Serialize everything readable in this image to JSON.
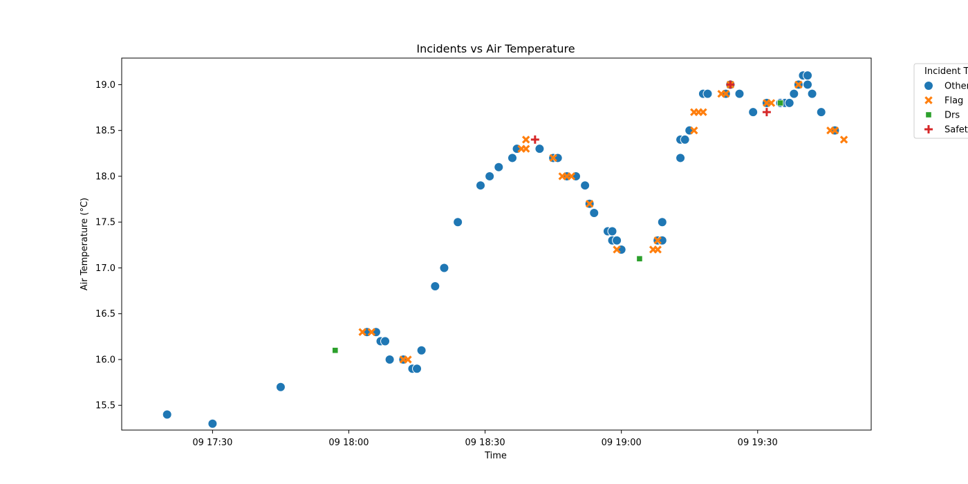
{
  "chart_data": {
    "type": "scatter",
    "title": "Incidents vs Air Temperature",
    "xlabel": "Time",
    "ylabel": "Air Temperature (°C)",
    "xlim": [
      "17:10",
      "19:55"
    ],
    "ylim": [
      15.23,
      19.29
    ],
    "x_ticks": [
      "09 17:30",
      "09 18:00",
      "09 18:30",
      "09 19:00",
      "09 19:30"
    ],
    "y_ticks": [
      "15.5",
      "16.0",
      "16.5",
      "17.0",
      "17.5",
      "18.0",
      "18.5",
      "19.0"
    ],
    "legend": {
      "title": "Incident Type",
      "placement": "outside-right",
      "entries": [
        "Other",
        "Flag",
        "Drs",
        "Safety Car"
      ]
    },
    "series": [
      {
        "name": "Other",
        "marker": "circle",
        "color": "#1f77b4",
        "points": [
          [
            "17:20",
            15.4
          ],
          [
            "17:30",
            15.3
          ],
          [
            "17:45",
            15.7
          ],
          [
            "18:04",
            16.3
          ],
          [
            "18:06",
            16.3
          ],
          [
            "18:07",
            16.2
          ],
          [
            "18:08",
            16.2
          ],
          [
            "18:09",
            16.0
          ],
          [
            "18:12",
            16.0
          ],
          [
            "18:14",
            15.9
          ],
          [
            "18:15",
            15.9
          ],
          [
            "18:16",
            16.1
          ],
          [
            "18:19",
            16.8
          ],
          [
            "18:21",
            17.0
          ],
          [
            "18:24",
            17.5
          ],
          [
            "18:29",
            17.9
          ],
          [
            "18:31",
            18.0
          ],
          [
            "18:33",
            18.1
          ],
          [
            "18:36",
            18.2
          ],
          [
            "18:37",
            18.3
          ],
          [
            "18:42",
            18.3
          ],
          [
            "18:45",
            18.2
          ],
          [
            "18:46",
            18.2
          ],
          [
            "18:48",
            18.0
          ],
          [
            "18:50",
            18.0
          ],
          [
            "18:52",
            17.9
          ],
          [
            "18:53",
            17.7
          ],
          [
            "18:54",
            17.6
          ],
          [
            "18:57",
            17.4
          ],
          [
            "18:58",
            17.4
          ],
          [
            "18:58",
            17.3
          ],
          [
            "18:59",
            17.3
          ],
          [
            "19:00",
            17.2
          ],
          [
            "19:08",
            17.3
          ],
          [
            "19:09",
            17.3
          ],
          [
            "19:09",
            17.5
          ],
          [
            "19:13",
            18.2
          ],
          [
            "19:13",
            18.4
          ],
          [
            "19:14",
            18.4
          ],
          [
            "19:15",
            18.5
          ],
          [
            "19:18",
            18.9
          ],
          [
            "19:19",
            18.9
          ],
          [
            "19:23",
            18.9
          ],
          [
            "19:24",
            19.0
          ],
          [
            "19:26",
            18.9
          ],
          [
            "19:29",
            18.7
          ],
          [
            "19:32",
            18.8
          ],
          [
            "19:35",
            18.8
          ],
          [
            "19:36",
            18.8
          ],
          [
            "19:37",
            18.8
          ],
          [
            "19:38",
            18.9
          ],
          [
            "19:39",
            19.0
          ],
          [
            "19:40",
            19.1
          ],
          [
            "19:41",
            19.1
          ],
          [
            "19:41",
            19.0
          ],
          [
            "19:42",
            18.9
          ],
          [
            "19:44",
            18.7
          ],
          [
            "19:44",
            18.7
          ],
          [
            "19:47",
            18.5
          ],
          [
            "19:47",
            18.5
          ]
        ]
      },
      {
        "name": "Flag",
        "marker": "x",
        "color": "#ff7f0e",
        "points": [
          [
            "18:03",
            16.3
          ],
          [
            "18:05",
            16.3
          ],
          [
            "18:12",
            16.0
          ],
          [
            "18:13",
            16.0
          ],
          [
            "18:38",
            18.3
          ],
          [
            "18:39",
            18.3
          ],
          [
            "18:39",
            18.4
          ],
          [
            "18:45",
            18.2
          ],
          [
            "18:47",
            18.0
          ],
          [
            "18:48",
            18.0
          ],
          [
            "18:49",
            18.0
          ],
          [
            "18:53",
            17.7
          ],
          [
            "18:59",
            17.2
          ],
          [
            "19:07",
            17.2
          ],
          [
            "19:08",
            17.2
          ],
          [
            "19:08",
            17.3
          ],
          [
            "19:16",
            18.5
          ],
          [
            "19:16",
            18.7
          ],
          [
            "19:17",
            18.7
          ],
          [
            "19:18",
            18.7
          ],
          [
            "19:22",
            18.9
          ],
          [
            "19:23",
            18.9
          ],
          [
            "19:24",
            19.0
          ],
          [
            "19:32",
            18.8
          ],
          [
            "19:33",
            18.8
          ],
          [
            "19:39",
            19.0
          ],
          [
            "19:39",
            19.0
          ],
          [
            "19:46",
            18.5
          ],
          [
            "19:47",
            18.5
          ],
          [
            "19:49",
            18.4
          ]
        ]
      },
      {
        "name": "Drs",
        "marker": "square",
        "color": "#2ca02c",
        "points": [
          [
            "17:57",
            16.1
          ],
          [
            "19:04",
            17.1
          ],
          [
            "19:35",
            18.8
          ]
        ]
      },
      {
        "name": "Safety Car",
        "marker": "plus",
        "color": "#d62728",
        "points": [
          [
            "18:41",
            18.4
          ],
          [
            "19:24",
            19.0
          ],
          [
            "19:32",
            18.7
          ]
        ]
      }
    ]
  }
}
